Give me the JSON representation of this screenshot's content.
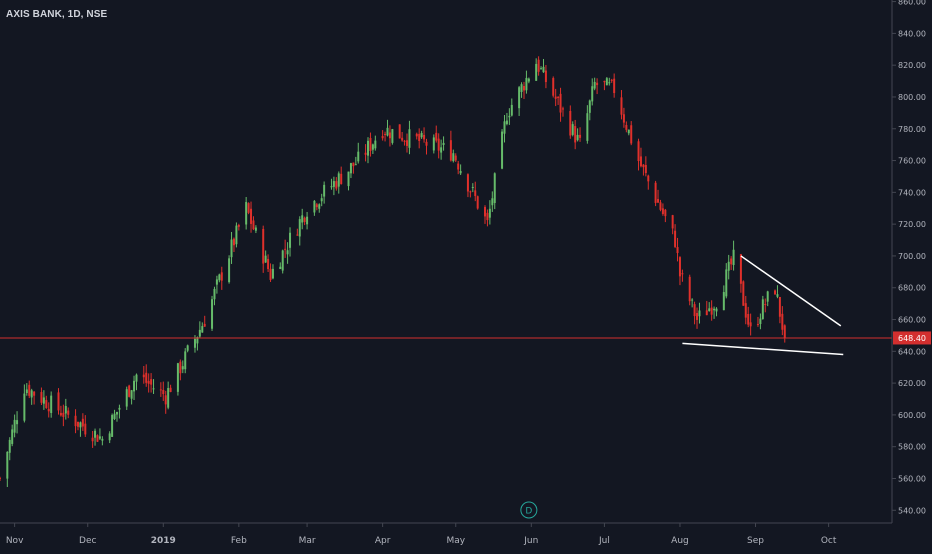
{
  "chart_data": {
    "type": "candlestick",
    "title": "AXIS BANK, 1D, NSE",
    "y_axis": {
      "ticks": [
        540,
        560,
        580,
        600,
        620,
        640,
        660,
        680,
        700,
        720,
        740,
        760,
        780,
        800,
        820,
        840,
        860
      ],
      "tick_labels": [
        "540.00",
        "560.00",
        "580.00",
        "600.00",
        "620.00",
        "640.00",
        "660.00",
        "680.00",
        "700.00",
        "720.00",
        "740.00",
        "760.00",
        "780.00",
        "800.00",
        "820.00",
        "840.00",
        "860.00"
      ],
      "range": [
        532,
        861
      ],
      "side": "right"
    },
    "x_axis": {
      "tick_labels": [
        "Nov",
        "Dec",
        "2019",
        "Feb",
        "Mar",
        "Apr",
        "May",
        "Jun",
        "Jul",
        "Aug",
        "Sep",
        "Oct"
      ],
      "tick_dates": [
        "2018-11-01",
        "2018-12-01",
        "2019-01-01",
        "2019-02-01",
        "2019-03-01",
        "2019-04-01",
        "2019-05-01",
        "2019-06-01",
        "2019-07-01",
        "2019-08-01",
        "2019-09-01",
        "2019-10-01"
      ],
      "range": [
        "2018-10-26",
        "2019-10-27"
      ]
    },
    "price_line": {
      "value": 648.4,
      "label": "648.40",
      "color": "#d32f2f"
    },
    "colors": {
      "up": "#66bb6a",
      "down": "#e0302b",
      "background": "#131722",
      "axis_text": "#b2b5be",
      "trendline": "#ffffff"
    },
    "key_points": [
      {
        "date": "2018-10-26",
        "close": 560
      },
      {
        "date": "2018-11-05",
        "close": 618
      },
      {
        "date": "2018-12-07",
        "close": 585
      },
      {
        "date": "2018-12-21",
        "close": 625
      },
      {
        "date": "2019-01-02",
        "close": 612
      },
      {
        "date": "2019-01-18",
        "close": 660
      },
      {
        "date": "2019-02-04",
        "close": 730
      },
      {
        "date": "2019-02-14",
        "close": 688
      },
      {
        "date": "2019-03-01",
        "close": 730
      },
      {
        "date": "2019-03-22",
        "close": 760
      },
      {
        "date": "2019-04-01",
        "close": 780
      },
      {
        "date": "2019-04-30",
        "close": 765
      },
      {
        "date": "2019-05-14",
        "close": 720
      },
      {
        "date": "2019-05-22",
        "close": 790
      },
      {
        "date": "2019-06-03",
        "close": 822
      },
      {
        "date": "2019-06-14",
        "close": 790
      },
      {
        "date": "2019-06-21",
        "close": 770
      },
      {
        "date": "2019-06-27",
        "close": 808
      },
      {
        "date": "2019-07-05",
        "close": 805
      },
      {
        "date": "2019-07-15",
        "close": 760
      },
      {
        "date": "2019-07-30",
        "close": 710
      },
      {
        "date": "2019-08-01",
        "close": 688
      },
      {
        "date": "2019-08-08",
        "close": 660
      },
      {
        "date": "2019-08-16",
        "close": 672
      },
      {
        "date": "2019-08-23",
        "close": 698
      },
      {
        "date": "2019-08-30",
        "close": 652
      },
      {
        "date": "2019-09-04",
        "close": 668
      },
      {
        "date": "2019-09-09",
        "close": 680
      },
      {
        "date": "2019-09-13",
        "close": 648.4
      }
    ],
    "annotations": [
      {
        "type": "trendline",
        "from": {
          "date": "2019-08-26",
          "value": 700
        },
        "to": {
          "date": "2019-10-06",
          "value": 656
        }
      },
      {
        "type": "trendline",
        "from": {
          "date": "2019-08-02",
          "value": 645
        },
        "to": {
          "date": "2019-10-07",
          "value": 638
        }
      },
      {
        "type": "event-marker",
        "label": "D",
        "date": "2019-05-31"
      }
    ]
  }
}
